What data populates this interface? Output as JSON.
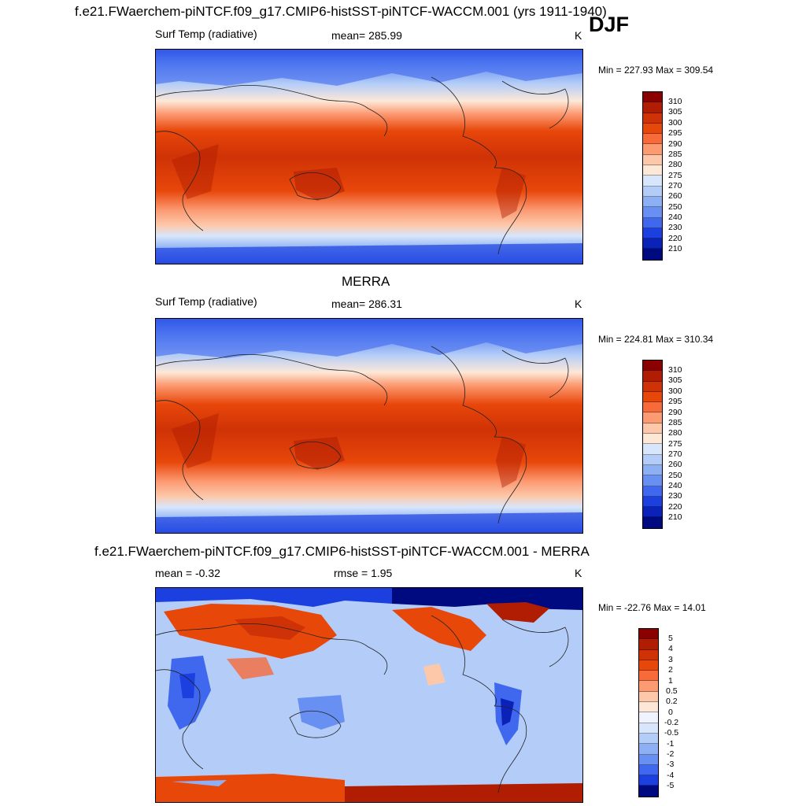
{
  "season": "DJF",
  "panels": [
    {
      "title": "f.e21.FWaerchem-piNTCF.f09_g17.CMIP6-histSST-piNTCF-WACCM.001 (yrs 1911-1940)",
      "left_label": "Surf Temp (radiative)",
      "center_label": "mean= 285.99",
      "units": "K",
      "minmax": "Min = 227.93 Max = 309.54",
      "colorbar": {
        "labels": [
          "310",
          "305",
          "300",
          "295",
          "290",
          "285",
          "280",
          "275",
          "270",
          "260",
          "250",
          "240",
          "230",
          "220",
          "210"
        ],
        "colors": [
          "#8b0000",
          "#b01d03",
          "#cf3206",
          "#e8470a",
          "#f76a3a",
          "#fc9a72",
          "#fdc8aa",
          "#fde8d8",
          "#d7e6fb",
          "#b4cdf8",
          "#8db0f4",
          "#6890f2",
          "#3f68ef",
          "#1c40e0",
          "#0a22b8",
          "#000a80"
        ]
      }
    },
    {
      "title": "MERRA",
      "left_label": "Surf Temp (radiative)",
      "center_label": "mean= 286.31",
      "units": "K",
      "minmax": "Min = 224.81 Max = 310.34",
      "colorbar": {
        "labels": [
          "310",
          "305",
          "300",
          "295",
          "290",
          "285",
          "280",
          "275",
          "270",
          "260",
          "250",
          "240",
          "230",
          "220",
          "210"
        ],
        "colors": [
          "#8b0000",
          "#b01d03",
          "#cf3206",
          "#e8470a",
          "#f76a3a",
          "#fc9a72",
          "#fdc8aa",
          "#fde8d8",
          "#d7e6fb",
          "#b4cdf8",
          "#8db0f4",
          "#6890f2",
          "#3f68ef",
          "#1c40e0",
          "#0a22b8",
          "#000a80"
        ]
      }
    },
    {
      "title": "f.e21.FWaerchem-piNTCF.f09_g17.CMIP6-histSST-piNTCF-WACCM.001 - MERRA",
      "left_label": "mean =  -0.32",
      "center_label": "rmse =   1.95",
      "units": "K",
      "minmax": "Min = -22.76 Max =  14.01",
      "colorbar": {
        "labels": [
          "5",
          "4",
          "3",
          "2",
          "1",
          "0.5",
          "0.2",
          "0",
          "-0.2",
          "-0.5",
          "-1",
          "-2",
          "-3",
          "-4",
          "-5"
        ],
        "colors": [
          "#8b0000",
          "#b01d03",
          "#cf3206",
          "#e8470a",
          "#f76a3a",
          "#fc9a72",
          "#fdc8aa",
          "#fde8d8",
          "#eef3fd",
          "#d7e6fb",
          "#b4cdf8",
          "#8db0f4",
          "#6890f2",
          "#3f68ef",
          "#1c40e0",
          "#000a80"
        ]
      }
    }
  ]
}
